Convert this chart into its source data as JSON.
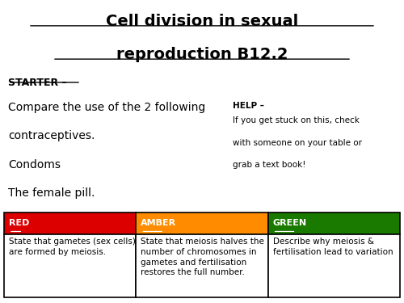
{
  "title_line1": "Cell division in sexual",
  "title_line2": "reproduction B12.2",
  "starter_label": "STARTER –",
  "main_text_line1": "Compare the use of the 2 following",
  "main_text_line2": "contraceptives.",
  "main_text_line3": "Condoms",
  "main_text_line4": "The female pill.",
  "help_title": "HELP –",
  "help_line1": "If you get stuck on this, check",
  "help_line2": "with someone on your table or",
  "help_line3": "grab a text book!",
  "col_headers": [
    "RED",
    "AMBER",
    "GREEN"
  ],
  "col_colors": [
    "#dd0000",
    "#ff8c00",
    "#1a7a00"
  ],
  "col_body_texts": [
    "State that gametes (sex cells)\nare formed by meiosis.",
    "State that meiosis halves the\nnumber of chromosomes in\ngametes and fertilisation\nrestores the full number.",
    "Describe why meiosis &\nfertilisation lead to variation"
  ],
  "background_color": "#ffffff",
  "text_color": "#000000",
  "table_border_color": "#000000",
  "title_fontsize": 14,
  "body_fontsize": 9,
  "starter_fontsize": 9,
  "help_fontsize": 7.5,
  "col_header_fontsize": 8,
  "main_text_fontsize": 10
}
